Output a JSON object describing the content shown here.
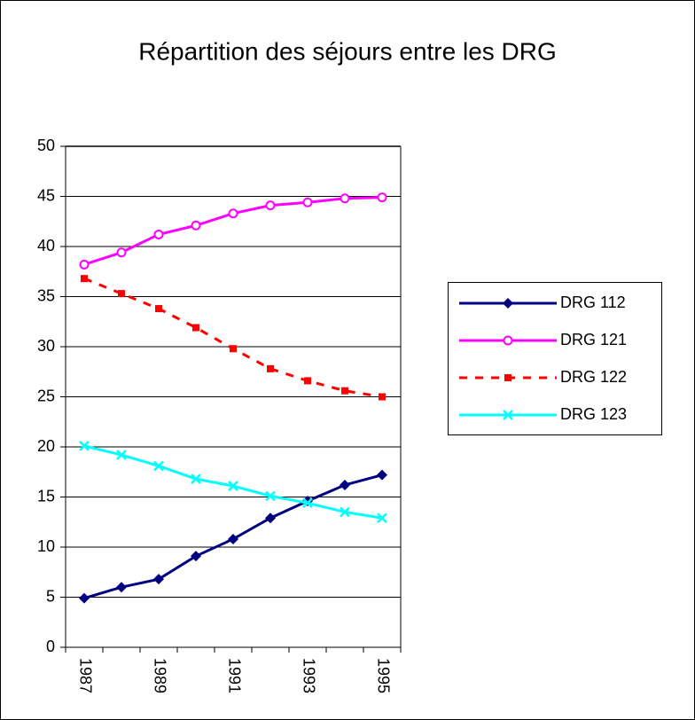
{
  "chart_data": {
    "type": "line",
    "title": "Répartition des séjours entre les DRG",
    "categories": [
      "1987",
      null,
      "1989",
      null,
      "1991",
      null,
      "1993",
      null,
      "1995"
    ],
    "series": [
      {
        "name": "DRG 112",
        "color": "#000080",
        "marker": "diamond",
        "dashed": false,
        "values": [
          4.9,
          6.0,
          6.8,
          9.1,
          10.8,
          12.9,
          14.6,
          16.2,
          17.2
        ]
      },
      {
        "name": "DRG 121",
        "color": "#ff00ff",
        "marker": "circle",
        "dashed": false,
        "values": [
          38.2,
          39.4,
          41.2,
          42.1,
          43.3,
          44.1,
          44.4,
          44.8,
          44.9
        ]
      },
      {
        "name": "DRG 122",
        "color": "#ff0000",
        "marker": "square",
        "dashed": true,
        "values": [
          36.8,
          35.3,
          33.8,
          31.9,
          29.8,
          27.8,
          26.6,
          25.6,
          25.0
        ]
      },
      {
        "name": "DRG 123",
        "color": "#00ffff",
        "marker": "x",
        "dashed": false,
        "values": [
          20.1,
          19.2,
          18.1,
          16.8,
          16.1,
          15.1,
          14.4,
          13.5,
          12.9
        ]
      }
    ],
    "ylim": [
      0,
      50
    ],
    "yticks": [
      0,
      5,
      10,
      15,
      20,
      25,
      30,
      35,
      40,
      45,
      50
    ],
    "grid": true,
    "legend": "right"
  }
}
